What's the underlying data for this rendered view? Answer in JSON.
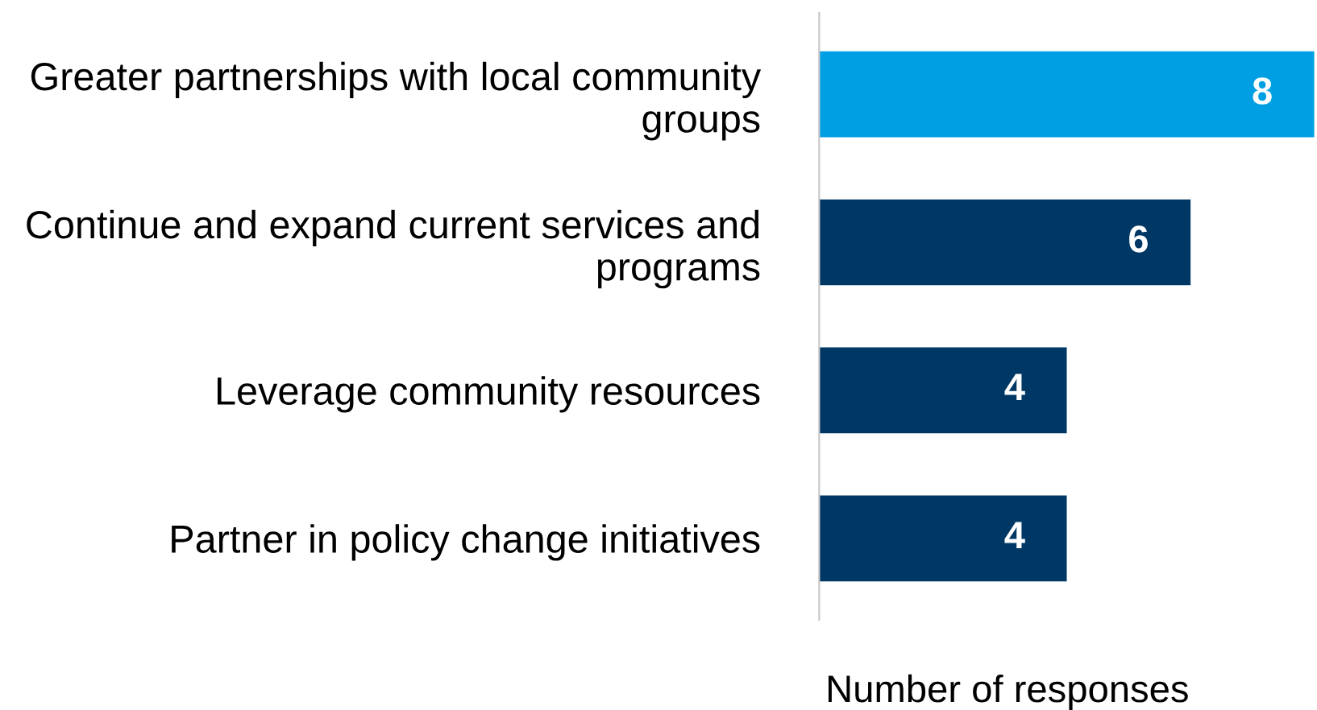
{
  "chart_data": {
    "type": "bar",
    "orientation": "horizontal",
    "categories": [
      "Greater partnerships with local community\ngroups",
      "Continue and expand current services and\nprograms",
      "Leverage community resources",
      "Partner in policy change initiatives"
    ],
    "values": [
      8,
      6,
      4,
      4
    ],
    "colors": [
      "#009fe3",
      "#003865",
      "#003865",
      "#003865"
    ],
    "data_labels": true,
    "xlabel": "Number of responses",
    "grid": false,
    "legend": false
  }
}
